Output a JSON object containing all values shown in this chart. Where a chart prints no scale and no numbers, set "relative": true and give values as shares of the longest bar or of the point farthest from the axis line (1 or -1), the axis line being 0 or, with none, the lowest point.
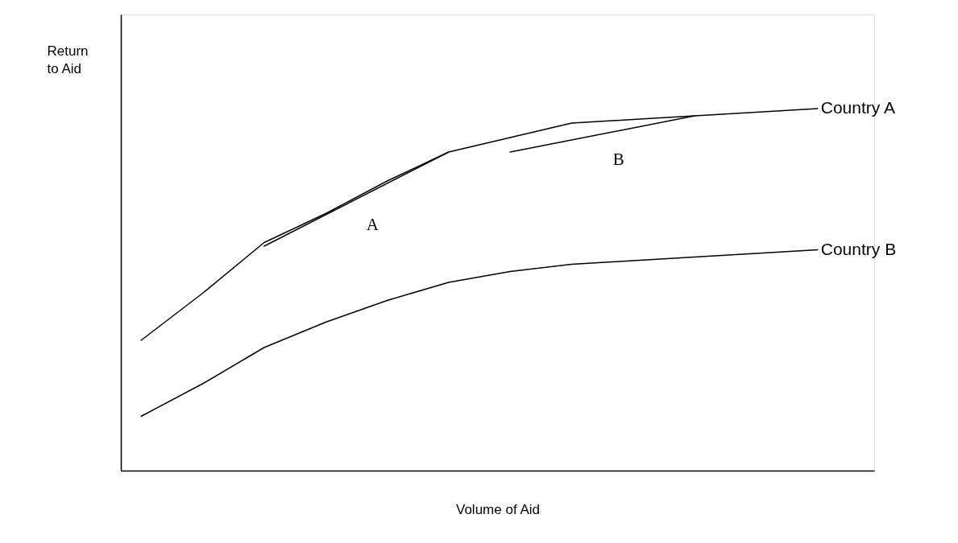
{
  "chart_data": {
    "type": "line",
    "relative": true,
    "xlabel": "Volume of Aid",
    "ylabel": "Return to Aid",
    "grid": false,
    "marker": "none",
    "line_style": "solid",
    "categories": [
      null,
      null,
      null,
      null,
      null,
      null,
      null,
      null,
      null,
      null,
      null,
      null
    ],
    "series": [
      {
        "name": "Country A",
        "color": "#000000",
        "values": [
          0.36,
          0.49,
          0.63,
          0.71,
          0.8,
          0.88,
          0.92,
          0.96,
          0.97,
          0.98,
          0.99,
          1.0
        ]
      },
      {
        "name": "Country B",
        "color": "#000000",
        "values": [
          0.15,
          0.24,
          0.34,
          0.41,
          0.47,
          0.52,
          0.55,
          0.57,
          0.58,
          0.59,
          0.6,
          0.61
        ]
      },
      {
        "type": "line",
        "color": "#000000",
        "values": [
          null,
          null,
          0.62,
          null,
          null,
          0.88,
          null,
          null,
          null,
          null,
          null,
          null
        ]
      },
      {
        "type": "line",
        "color": "#000000",
        "values": [
          null,
          null,
          null,
          null,
          null,
          null,
          0.88,
          null,
          null,
          0.98,
          null,
          null
        ]
      }
    ],
    "annotations": [
      "A",
      "B"
    ]
  }
}
